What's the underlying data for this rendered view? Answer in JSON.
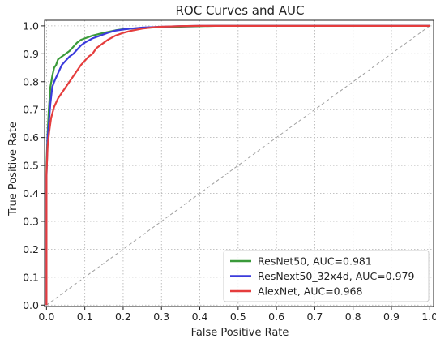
{
  "chart_data": {
    "type": "line",
    "title": "ROC Curves and AUC",
    "xlabel": "False Positive Rate",
    "ylabel": "True Positive Rate",
    "xlim": [
      -0.005,
      1.01
    ],
    "ylim": [
      -0.005,
      1.02
    ],
    "x_ticks": [
      0.0,
      0.1,
      0.2,
      0.3,
      0.4,
      0.5,
      0.6,
      0.7,
      0.8,
      0.9,
      1.0
    ],
    "y_ticks": [
      0.0,
      0.1,
      0.2,
      0.3,
      0.4,
      0.5,
      0.6,
      0.7,
      0.8,
      0.9,
      1.0
    ],
    "x_tick_labels": [
      "0.0",
      "0.1",
      "0.2",
      "0.3",
      "0.4",
      "0.5",
      "0.6",
      "0.7",
      "0.8",
      "0.9",
      "1.0"
    ],
    "y_tick_labels": [
      "0.0",
      "0.1",
      "0.2",
      "0.3",
      "0.4",
      "0.5",
      "0.6",
      "0.7",
      "0.8",
      "0.9",
      "1.0"
    ],
    "grid": true,
    "legend_position": "lower-right",
    "diagonal": {
      "x": [
        0,
        1
      ],
      "y": [
        0,
        1
      ],
      "color": "#a0a0a0",
      "style": "dashed"
    },
    "series": [
      {
        "name": "ResNet50, AUC=0.981",
        "color": "#3a9a3a",
        "x": [
          0,
          0,
          0.003,
          0.006,
          0.01,
          0.015,
          0.02,
          0.025,
          0.03,
          0.04,
          0.05,
          0.06,
          0.07,
          0.08,
          0.09,
          0.1,
          0.12,
          0.14,
          0.16,
          0.18,
          0.2,
          0.22,
          0.25,
          0.3,
          0.35,
          0.4,
          0.44,
          0.5,
          0.6,
          0.7,
          0.8,
          0.9,
          1.0
        ],
        "y": [
          0,
          0.5,
          0.62,
          0.7,
          0.78,
          0.82,
          0.85,
          0.86,
          0.88,
          0.89,
          0.9,
          0.91,
          0.925,
          0.94,
          0.95,
          0.955,
          0.965,
          0.972,
          0.978,
          0.984,
          0.988,
          0.99,
          0.993,
          0.995,
          0.997,
          0.999,
          1.0,
          1.0,
          1.0,
          1.0,
          1.0,
          1.0,
          1.0
        ]
      },
      {
        "name": "ResNext50_32x4d, AUC=0.979",
        "color": "#3b3bdc",
        "x": [
          0,
          0,
          0.003,
          0.006,
          0.01,
          0.015,
          0.02,
          0.03,
          0.04,
          0.05,
          0.06,
          0.07,
          0.08,
          0.09,
          0.1,
          0.12,
          0.14,
          0.16,
          0.18,
          0.2,
          0.22,
          0.25,
          0.3,
          0.35,
          0.4,
          0.5,
          0.6,
          0.7,
          0.8,
          0.9,
          1.0
        ],
        "y": [
          0,
          0.46,
          0.6,
          0.65,
          0.72,
          0.78,
          0.8,
          0.83,
          0.86,
          0.875,
          0.89,
          0.9,
          0.915,
          0.93,
          0.94,
          0.955,
          0.965,
          0.975,
          0.983,
          0.987,
          0.99,
          0.994,
          0.997,
          0.999,
          1.0,
          1.0,
          1.0,
          1.0,
          1.0,
          1.0,
          1.0
        ]
      },
      {
        "name": "AlexNet, AUC=0.968",
        "color": "#e53d3d",
        "x": [
          0,
          0,
          0.003,
          0.007,
          0.012,
          0.02,
          0.03,
          0.04,
          0.05,
          0.06,
          0.07,
          0.08,
          0.09,
          0.1,
          0.11,
          0.12,
          0.13,
          0.14,
          0.15,
          0.16,
          0.18,
          0.2,
          0.22,
          0.25,
          0.28,
          0.3,
          0.35,
          0.4,
          0.5,
          0.6,
          0.7,
          0.8,
          0.9,
          1.0
        ],
        "y": [
          0,
          0.47,
          0.57,
          0.62,
          0.67,
          0.71,
          0.74,
          0.76,
          0.78,
          0.8,
          0.82,
          0.84,
          0.86,
          0.875,
          0.89,
          0.9,
          0.92,
          0.93,
          0.94,
          0.95,
          0.965,
          0.975,
          0.982,
          0.99,
          0.995,
          0.997,
          0.999,
          1.0,
          1.0,
          1.0,
          1.0,
          1.0,
          1.0,
          1.0
        ]
      }
    ]
  }
}
